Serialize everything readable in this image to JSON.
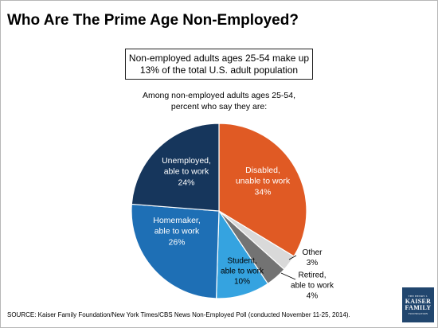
{
  "title": "Who Are The Prime Age Non-Employed?",
  "callout": {
    "line1": "Non-employed adults ages 25-54 make up",
    "line2": "13% of the total U.S. adult population"
  },
  "subtitle": {
    "line1": "Among non-employed adults ages 25-54,",
    "line2": "percent who say they are:"
  },
  "chart_data": {
    "type": "pie",
    "title": "",
    "slices": [
      {
        "label_lines": [
          "Disabled,",
          "unable to work"
        ],
        "value": 34,
        "value_text": "34%",
        "color": "#e05a24",
        "label_color": "#ffffff"
      },
      {
        "label_lines": [
          "Other"
        ],
        "value": 3,
        "value_text": "3%",
        "color": "#d9d9d9",
        "label_color": "#000000"
      },
      {
        "label_lines": [
          "Retired,",
          "able to work"
        ],
        "value": 4,
        "value_text": "4%",
        "color": "#737373",
        "label_color": "#000000"
      },
      {
        "label_lines": [
          "Student,",
          "able to work"
        ],
        "value": 10,
        "value_text": "10%",
        "color": "#35a3e0",
        "label_color": "#000000"
      },
      {
        "label_lines": [
          "Homemaker,",
          "able to work"
        ],
        "value": 26,
        "value_text": "26%",
        "color": "#1e6fb5",
        "label_color": "#ffffff"
      },
      {
        "label_lines": [
          "Unemployed,",
          "able to work"
        ],
        "value": 24,
        "value_text": "24%",
        "color": "#16365c",
        "label_color": "#ffffff"
      }
    ]
  },
  "source": "SOURCE: Kaiser Family Foundation/New York Times/CBS News Non-Employed Poll (conducted November 11-25, 2014).",
  "logo": {
    "top": "THE HENRY J.",
    "line1": "KAISER",
    "line2": "FAMILY",
    "bottom": "FOUNDATION"
  }
}
